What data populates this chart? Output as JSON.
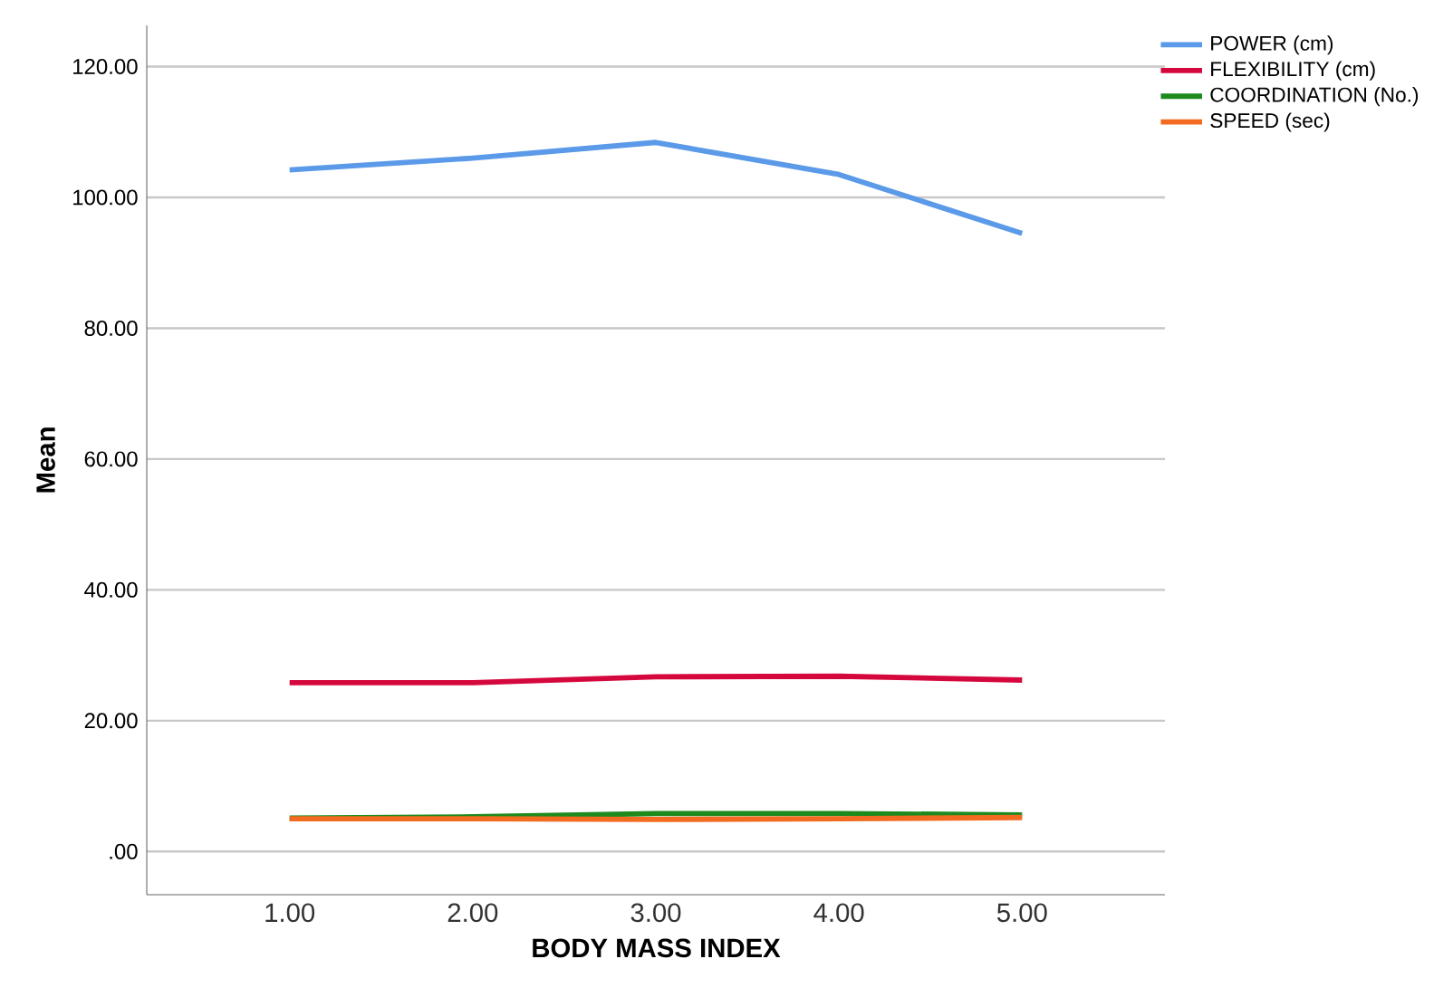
{
  "chart_data": {
    "type": "line",
    "xlabel": "BODY MASS INDEX",
    "ylabel": "Mean",
    "x": [
      1,
      2,
      3,
      4,
      5
    ],
    "xlim": [
      0.22,
      5.78
    ],
    "xticks": [
      {
        "value": 1,
        "label": "1.00"
      },
      {
        "value": 2,
        "label": "2.00"
      },
      {
        "value": 3,
        "label": "3.00"
      },
      {
        "value": 4,
        "label": "4.00"
      },
      {
        "value": 5,
        "label": "5.00"
      }
    ],
    "ylim": [
      -6.6,
      126.3
    ],
    "yticks": [
      {
        "value": 0,
        "label": ".00"
      },
      {
        "value": 20,
        "label": "20.00"
      },
      {
        "value": 40,
        "label": "40.00"
      },
      {
        "value": 60,
        "label": "60.00"
      },
      {
        "value": 80,
        "label": "80.00"
      },
      {
        "value": 100,
        "label": "100.00"
      },
      {
        "value": 120,
        "label": "120.00"
      }
    ],
    "grid": "y",
    "legend": "top right",
    "marker": "none",
    "line_style": "solid",
    "series": [
      {
        "name": "POWER (cm)",
        "color": "#5b9ae8",
        "values": [
          104.2,
          106.0,
          108.4,
          103.5,
          94.5
        ]
      },
      {
        "name": "FLEXIBILITY (cm)",
        "color": "#d5083d",
        "values": [
          25.8,
          25.8,
          26.7,
          26.8,
          26.2
        ]
      },
      {
        "name": "COORDINATION (No.)",
        "color": "#1e8a1e",
        "values": [
          5.1,
          5.3,
          5.8,
          5.8,
          5.6
        ]
      },
      {
        "name": "SPEED (sec)",
        "color": "#f26b21",
        "values": [
          5.0,
          5.0,
          4.9,
          5.0,
          5.2
        ]
      }
    ]
  }
}
